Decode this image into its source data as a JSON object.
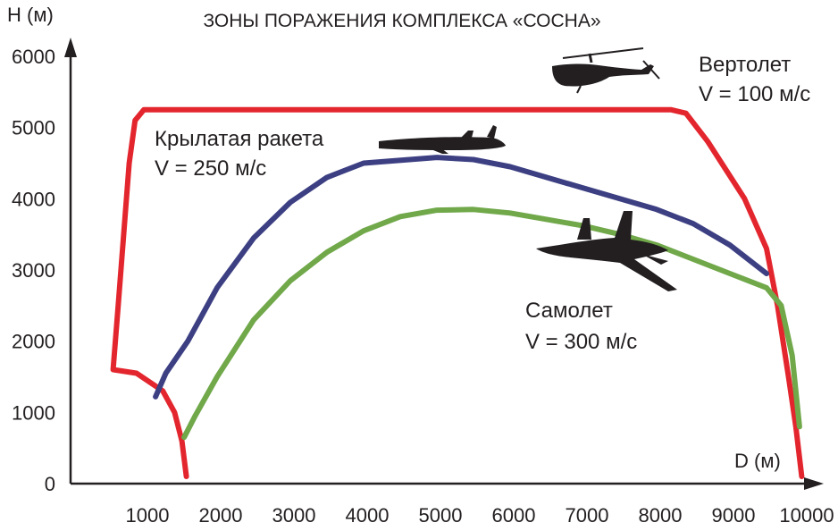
{
  "chart_data": {
    "type": "line",
    "title": "ЗОНЫ ПОРАЖЕНИЯ КОМПЛЕКСА «СОСНА»",
    "xlabel": "D (м)",
    "ylabel": "H (м)",
    "xlim": [
      0,
      10000
    ],
    "ylim": [
      0,
      6000
    ],
    "x_ticks": [
      1000,
      2000,
      3000,
      4000,
      5000,
      6000,
      7000,
      8000,
      9000,
      10000
    ],
    "y_ticks": [
      0,
      1000,
      2000,
      3000,
      4000,
      5000,
      6000
    ],
    "grid": false,
    "series": [
      {
        "name": "Вертолет",
        "speed_label": "V = 100 м/с",
        "color": "#e3262e",
        "points": [
          [
            1580,
            100
          ],
          [
            1520,
            600
          ],
          [
            1420,
            1000
          ],
          [
            1260,
            1300
          ],
          [
            900,
            1550
          ],
          [
            580,
            1600
          ],
          [
            650,
            2500
          ],
          [
            800,
            4500
          ],
          [
            880,
            5100
          ],
          [
            1000,
            5250
          ],
          [
            8200,
            5250
          ],
          [
            8400,
            5200
          ],
          [
            8700,
            4800
          ],
          [
            9200,
            4000
          ],
          [
            9500,
            3300
          ],
          [
            9650,
            2500
          ],
          [
            9800,
            1500
          ],
          [
            9900,
            800
          ],
          [
            9980,
            100
          ]
        ]
      },
      {
        "name": "Крылатая ракета",
        "speed_label": "V = 250 м/с",
        "color": "#3c3f82",
        "points": [
          [
            1160,
            1220
          ],
          [
            1300,
            1550
          ],
          [
            1600,
            2000
          ],
          [
            2000,
            2750
          ],
          [
            2500,
            3450
          ],
          [
            3000,
            3950
          ],
          [
            3500,
            4300
          ],
          [
            4000,
            4500
          ],
          [
            5000,
            4580
          ],
          [
            5500,
            4550
          ],
          [
            6000,
            4450
          ],
          [
            7000,
            4150
          ],
          [
            8000,
            3850
          ],
          [
            8500,
            3650
          ],
          [
            9000,
            3350
          ],
          [
            9500,
            2950
          ]
        ]
      },
      {
        "name": "Самолет",
        "speed_label": "V = 300 м/с",
        "color": "#70a84a",
        "points": [
          [
            1550,
            650
          ],
          [
            1700,
            950
          ],
          [
            2000,
            1500
          ],
          [
            2500,
            2300
          ],
          [
            3000,
            2850
          ],
          [
            3500,
            3250
          ],
          [
            4000,
            3550
          ],
          [
            4500,
            3750
          ],
          [
            5000,
            3840
          ],
          [
            5500,
            3850
          ],
          [
            6000,
            3800
          ],
          [
            7000,
            3620
          ],
          [
            7500,
            3500
          ],
          [
            8000,
            3350
          ],
          [
            8500,
            3150
          ],
          [
            9000,
            2950
          ],
          [
            9500,
            2750
          ],
          [
            9700,
            2500
          ],
          [
            9850,
            1800
          ],
          [
            9950,
            800
          ]
        ]
      }
    ],
    "annotations": [
      {
        "series": "Вертолет",
        "line1": "Вертолет",
        "line2": "V = 100 м/с",
        "icon": "helicopter-icon"
      },
      {
        "series": "Крылатая ракета",
        "line1": "Крылатая ракета",
        "line2": "V = 250 м/с",
        "icon": "cruise-missile-icon"
      },
      {
        "series": "Самолет",
        "line1": "Самолет",
        "line2": "V = 300 м/с",
        "icon": "fighter-jet-icon"
      }
    ]
  }
}
